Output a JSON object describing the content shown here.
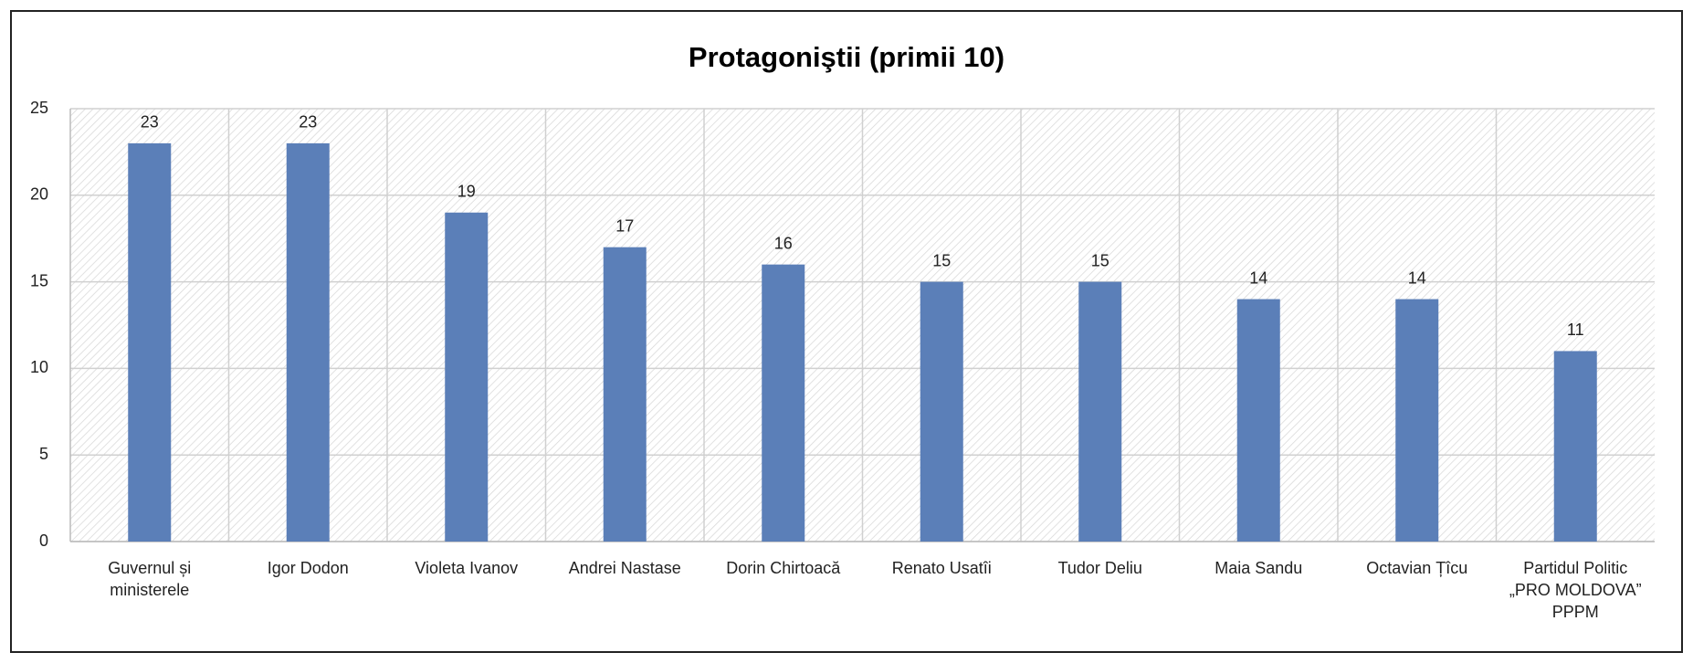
{
  "chart_data": {
    "type": "bar",
    "title": "Protagoniştii (primii 10)",
    "categories": [
      "Guvernul și\nministerele",
      "Igor Dodon",
      "Violeta Ivanov",
      "Andrei Nastase",
      "Dorin Chirtoacă",
      "Renato Usatîi",
      "Tudor Deliu",
      "Maia Sandu",
      "Octavian Țîcu",
      "Partidul Politic\n„PRO MOLDOVA”\nPPPM"
    ],
    "values": [
      23,
      23,
      19,
      17,
      16,
      15,
      15,
      14,
      14,
      11
    ],
    "color": "#5b7fb8",
    "ylim": [
      0,
      25
    ],
    "yticks": [
      0,
      5,
      10,
      15,
      20,
      25
    ],
    "grid": true
  }
}
